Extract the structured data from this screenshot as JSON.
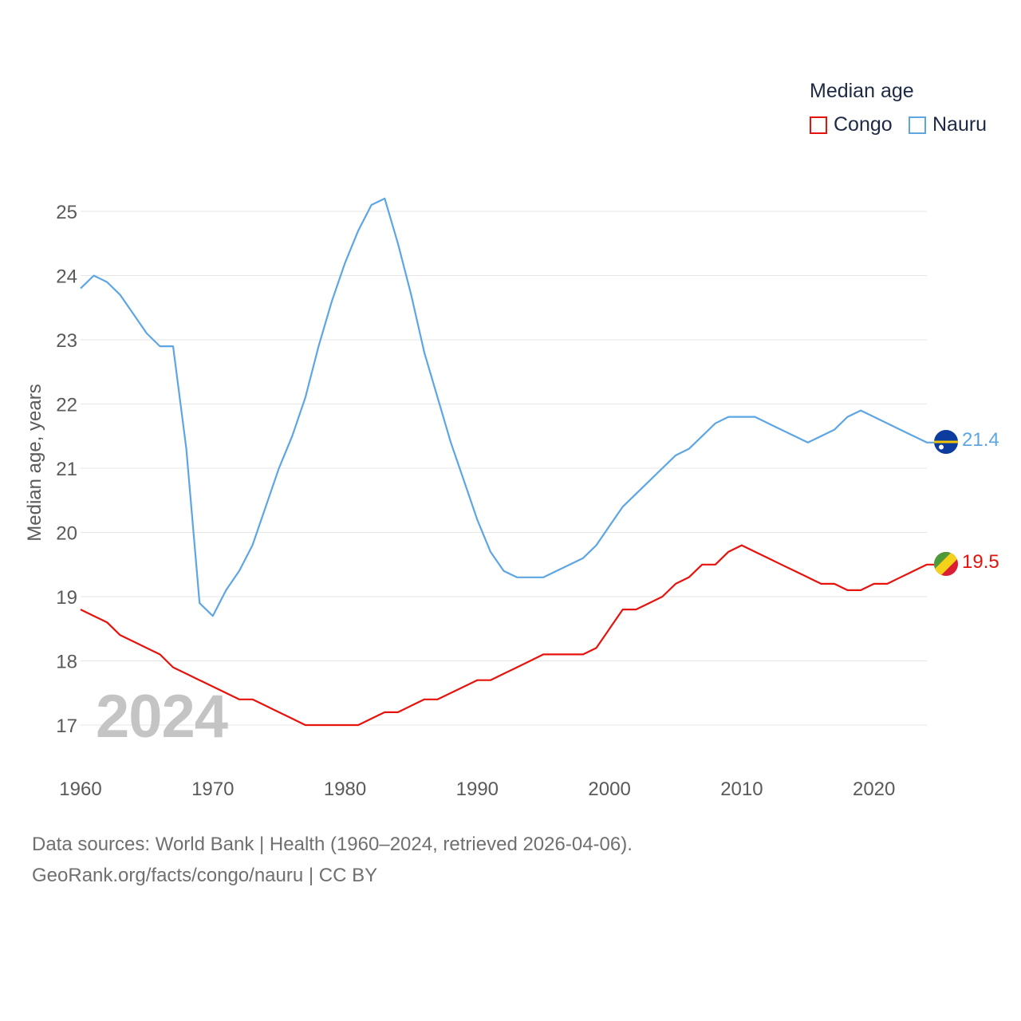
{
  "legend": {
    "title": "Median age",
    "items": [
      {
        "name": "Congo",
        "color": "#e8120c"
      },
      {
        "name": "Nauru",
        "color": "#5ea6e3"
      }
    ]
  },
  "watermark_year": "2024",
  "source": {
    "line1": "Data sources: World Bank | Health (1960–2024, retrieved 2026-04-06).",
    "line2": "GeoRank.org/facts/congo/nauru | CC BY"
  },
  "colors": {
    "congo": "#e8120c",
    "nauru": "#5ea6e3",
    "grid": "#e6e6e6",
    "axis_text": "#5a5a5a"
  },
  "chart_data": {
    "type": "line",
    "title": "",
    "xlabel": "",
    "ylabel": "Median age, years",
    "xlim": [
      1960,
      2024
    ],
    "ylim": [
      16.6,
      25.5
    ],
    "x_ticks": [
      1960,
      1970,
      1980,
      1990,
      2000,
      2010,
      2020
    ],
    "y_ticks": [
      17,
      18,
      19,
      20,
      21,
      22,
      23,
      24,
      25
    ],
    "grid": true,
    "legend_position": "top-right",
    "x": [
      1960,
      1961,
      1962,
      1963,
      1964,
      1965,
      1966,
      1967,
      1968,
      1969,
      1970,
      1971,
      1972,
      1973,
      1974,
      1975,
      1976,
      1977,
      1978,
      1979,
      1980,
      1981,
      1982,
      1983,
      1984,
      1985,
      1986,
      1987,
      1988,
      1989,
      1990,
      1991,
      1992,
      1993,
      1994,
      1995,
      1996,
      1997,
      1998,
      1999,
      2000,
      2001,
      2002,
      2003,
      2004,
      2005,
      2006,
      2007,
      2008,
      2009,
      2010,
      2011,
      2012,
      2013,
      2014,
      2015,
      2016,
      2017,
      2018,
      2019,
      2020,
      2021,
      2022,
      2023,
      2024
    ],
    "series": [
      {
        "name": "Congo",
        "end_label": "19.5",
        "values": [
          18.8,
          18.7,
          18.6,
          18.4,
          18.3,
          18.2,
          18.1,
          17.9,
          17.8,
          17.7,
          17.6,
          17.5,
          17.4,
          17.4,
          17.3,
          17.2,
          17.1,
          17.0,
          17.0,
          17.0,
          17.0,
          17.0,
          17.1,
          17.2,
          17.2,
          17.3,
          17.4,
          17.4,
          17.5,
          17.6,
          17.7,
          17.7,
          17.8,
          17.9,
          18.0,
          18.1,
          18.1,
          18.1,
          18.1,
          18.2,
          18.5,
          18.8,
          18.8,
          18.9,
          19.0,
          19.2,
          19.3,
          19.5,
          19.5,
          19.7,
          19.8,
          19.7,
          19.6,
          19.5,
          19.4,
          19.3,
          19.2,
          19.2,
          19.1,
          19.1,
          19.2,
          19.2,
          19.3,
          19.4,
          19.5
        ]
      },
      {
        "name": "Nauru",
        "end_label": "21.4",
        "values": [
          23.8,
          24.0,
          23.9,
          23.7,
          23.4,
          23.1,
          22.9,
          22.9,
          21.3,
          18.9,
          18.7,
          19.1,
          19.4,
          19.8,
          20.4,
          21.0,
          21.5,
          22.1,
          22.9,
          23.6,
          24.2,
          24.7,
          25.1,
          25.2,
          24.5,
          23.7,
          22.8,
          22.1,
          21.4,
          20.8,
          20.2,
          19.7,
          19.4,
          19.3,
          19.3,
          19.3,
          19.4,
          19.5,
          19.6,
          19.8,
          20.1,
          20.4,
          20.6,
          20.8,
          21.0,
          21.2,
          21.3,
          21.5,
          21.7,
          21.8,
          21.8,
          21.8,
          21.7,
          21.6,
          21.5,
          21.4,
          21.5,
          21.6,
          21.8,
          21.9,
          21.8,
          21.7,
          21.6,
          21.5,
          21.4
        ]
      }
    ]
  }
}
